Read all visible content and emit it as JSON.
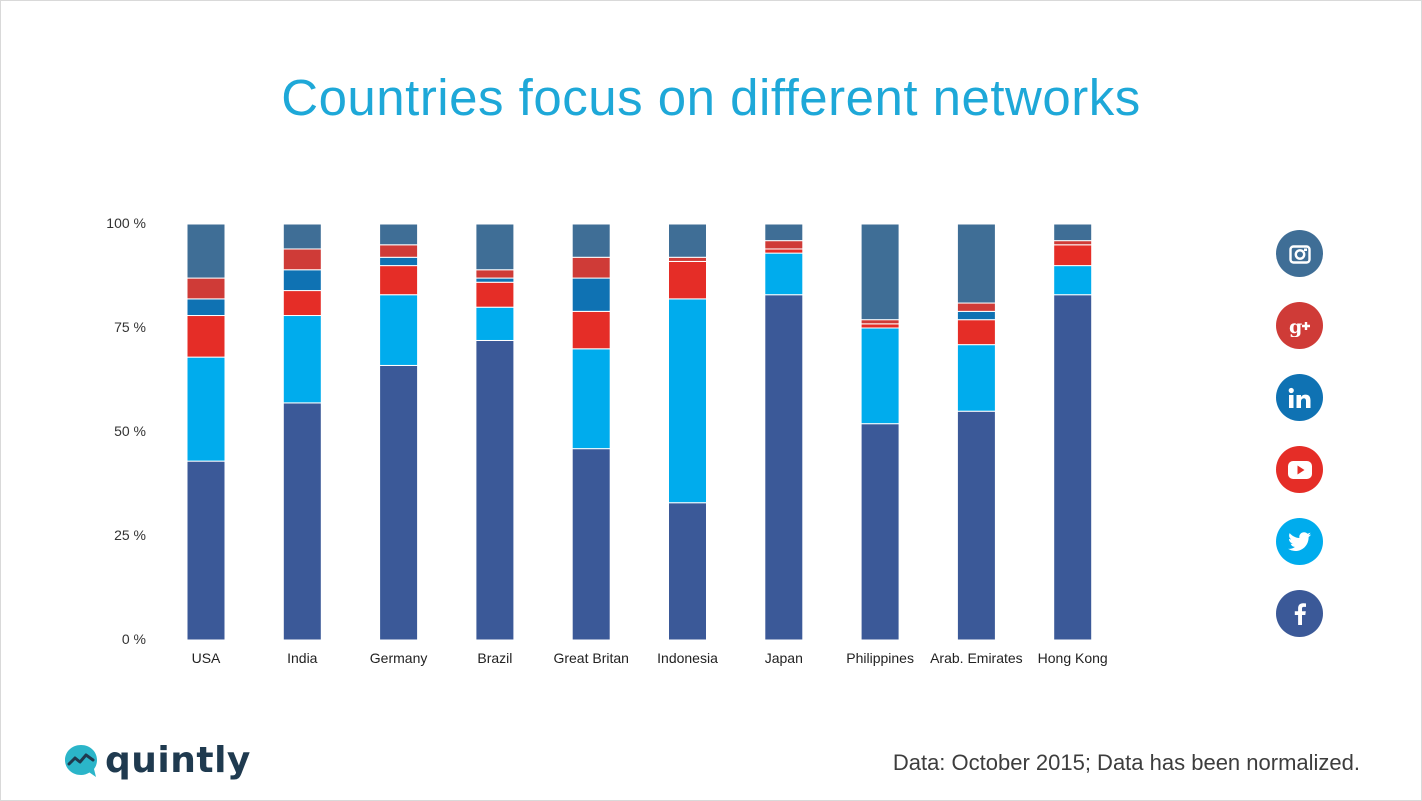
{
  "title": "Countries focus on different networks",
  "footnote": "Data: October 2015; Data has been normalized.",
  "logo": {
    "word": "quintly"
  },
  "legend": [
    {
      "network": "Instagram",
      "icon": "instagram-icon",
      "color": "#3f6e96"
    },
    {
      "network": "Google+",
      "icon": "google-plus-icon",
      "color": "#cf3b37"
    },
    {
      "network": "LinkedIn",
      "icon": "linkedin-icon",
      "color": "#0f72b3"
    },
    {
      "network": "YouTube",
      "icon": "youtube-icon",
      "color": "#e52d27"
    },
    {
      "network": "Twitter",
      "icon": "twitter-icon",
      "color": "#00aced"
    },
    {
      "network": "Facebook",
      "icon": "facebook-icon",
      "color": "#3b5998"
    }
  ],
  "chart_data": {
    "type": "bar",
    "stacked": true,
    "title": "Countries focus on different networks",
    "xlabel": "",
    "ylabel": "",
    "ylim": [
      0,
      100
    ],
    "yticks": [
      0,
      25,
      50,
      75,
      100
    ],
    "ytick_labels": [
      "0 %",
      "25 %",
      "50 %",
      "75 %",
      "100 %"
    ],
    "categories": [
      "USA",
      "India",
      "Germany",
      "Brazil",
      "Great Britan",
      "Indonesia",
      "Japan",
      "Philippines",
      "Arab. Emirates",
      "Hong Kong"
    ],
    "series": [
      {
        "name": "Facebook",
        "color": "#3b5998",
        "values": [
          43,
          57,
          66,
          72,
          46,
          33,
          83,
          52,
          55,
          83
        ]
      },
      {
        "name": "Twitter",
        "color": "#00aced",
        "values": [
          25,
          21,
          17,
          8,
          24,
          49,
          10,
          23,
          16,
          7
        ]
      },
      {
        "name": "YouTube",
        "color": "#e52d27",
        "values": [
          10,
          6,
          7,
          6,
          9,
          9,
          1,
          1,
          6,
          5
        ]
      },
      {
        "name": "LinkedIn",
        "color": "#0f72b3",
        "values": [
          4,
          5,
          2,
          1,
          8,
          0,
          0,
          0,
          2,
          0
        ]
      },
      {
        "name": "Google+",
        "color": "#cf3b37",
        "values": [
          5,
          5,
          3,
          2,
          5,
          1,
          2,
          1,
          2,
          1
        ]
      },
      {
        "name": "Instagram",
        "color": "#3f6e96",
        "values": [
          13,
          6,
          5,
          11,
          8,
          8,
          4,
          23,
          19,
          4
        ]
      }
    ]
  }
}
